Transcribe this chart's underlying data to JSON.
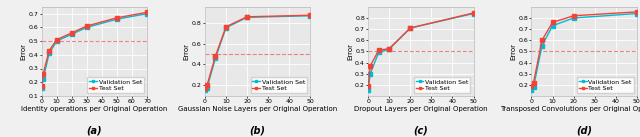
{
  "subplots": [
    {
      "xlabel": "Identity operations per Original Operation",
      "label": "(a)",
      "xlim": [
        0,
        70
      ],
      "ylim": [
        0.1,
        0.75
      ],
      "yticks": [
        0.1,
        0.2,
        0.3,
        0.4,
        0.5,
        0.6,
        0.7
      ],
      "xticks": [
        0,
        10,
        20,
        30,
        40,
        50,
        60,
        70
      ],
      "hline": 0.5,
      "val_x": [
        0,
        1,
        5,
        10,
        20,
        30,
        50,
        70
      ],
      "val_y": [
        0.155,
        0.22,
        0.41,
        0.5,
        0.55,
        0.6,
        0.66,
        0.7
      ],
      "test_x": [
        0,
        1,
        5,
        10,
        20,
        30,
        50,
        70
      ],
      "test_y": [
        0.175,
        0.26,
        0.43,
        0.51,
        0.56,
        0.61,
        0.67,
        0.71
      ]
    },
    {
      "xlabel": "Gaussian Noise Layers per Original Operation",
      "label": "(b)",
      "xlim": [
        0,
        50
      ],
      "ylim": [
        0.1,
        0.95
      ],
      "yticks": [
        0.2,
        0.4,
        0.6,
        0.8
      ],
      "xticks": [
        0,
        10,
        20,
        30,
        40,
        50
      ],
      "hline": 0.5,
      "val_x": [
        0,
        1,
        5,
        10,
        20,
        50
      ],
      "val_y": [
        0.155,
        0.175,
        0.46,
        0.75,
        0.85,
        0.865
      ],
      "test_x": [
        0,
        1,
        5,
        10,
        20,
        50
      ],
      "test_y": [
        0.175,
        0.2,
        0.48,
        0.76,
        0.855,
        0.87
      ]
    },
    {
      "xlabel": "Dropout Layers per Original Operation",
      "label": "(c)",
      "xlim": [
        0,
        50
      ],
      "ylim": [
        0.1,
        0.9
      ],
      "yticks": [
        0.2,
        0.3,
        0.4,
        0.5,
        0.6,
        0.7,
        0.8
      ],
      "xticks": [
        0,
        10,
        20,
        30,
        40,
        50
      ],
      "hline": 0.5,
      "val_x": [
        0,
        1,
        5,
        10,
        20,
        50
      ],
      "val_y": [
        0.155,
        0.3,
        0.49,
        0.52,
        0.71,
        0.84
      ],
      "test_x": [
        0,
        1,
        5,
        10,
        20,
        50
      ],
      "test_y": [
        0.185,
        0.37,
        0.51,
        0.525,
        0.71,
        0.845
      ]
    },
    {
      "xlabel": "Transposed Convolutions per Original Operation",
      "label": "(d)",
      "xlim": [
        0,
        50
      ],
      "ylim": [
        0.1,
        0.9
      ],
      "yticks": [
        0.2,
        0.3,
        0.4,
        0.5,
        0.6,
        0.7,
        0.8
      ],
      "xticks": [
        0,
        10,
        20,
        30,
        40,
        50
      ],
      "hline": 0.5,
      "val_x": [
        0,
        1,
        5,
        10,
        20,
        50
      ],
      "val_y": [
        0.155,
        0.18,
        0.55,
        0.73,
        0.8,
        0.84
      ],
      "test_x": [
        0,
        1,
        5,
        10,
        20,
        50
      ],
      "test_y": [
        0.185,
        0.22,
        0.6,
        0.76,
        0.82,
        0.855
      ]
    }
  ],
  "val_color": "#00bcd4",
  "test_color": "#f44336",
  "hline_color": "#e87070",
  "bg_color": "#e8e8e8",
  "grid_color": "#ffffff",
  "fig_color": "#f0f0f0",
  "val_label": "Validation Set",
  "test_label": "Test Set",
  "ylabel": "Error",
  "marker": "s",
  "linewidth": 1.0,
  "markersize": 2.5,
  "label_fontsize": 5.0,
  "tick_fontsize": 4.5,
  "legend_fontsize": 4.5,
  "sublabel_fontsize": 7.0
}
